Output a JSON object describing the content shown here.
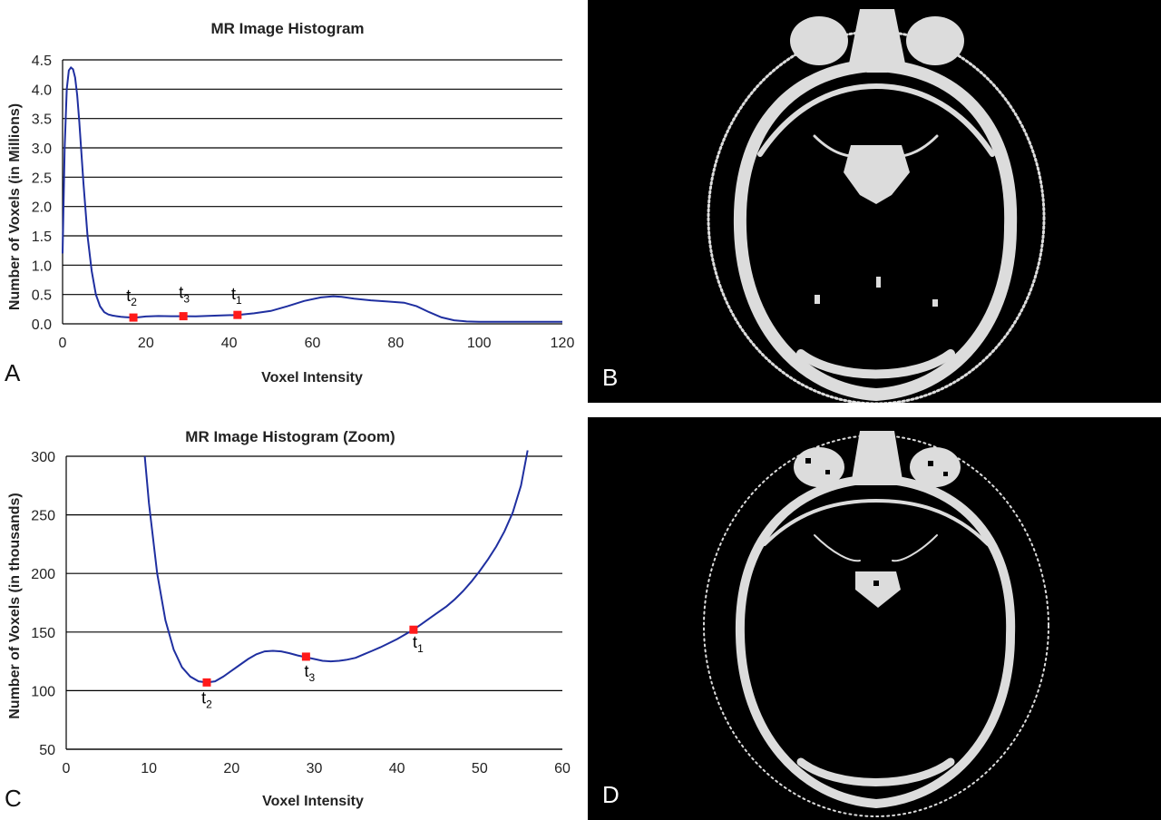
{
  "panels": {
    "a": "A",
    "b": "B",
    "c": "C",
    "d": "D"
  },
  "colors": {
    "curve": "#1f2fa0",
    "marker": "#ff1a1a",
    "scan": "#dcdcdc"
  },
  "chart_data": [
    {
      "panel": "A",
      "type": "line",
      "title": "MR Image Histogram",
      "xlabel": "Voxel Intensity",
      "ylabel": "Number of Voxels (in Millions)",
      "xlim": [
        0,
        120
      ],
      "ylim": [
        0,
        4.5
      ],
      "xticks": [
        0,
        20,
        40,
        60,
        80,
        100,
        120
      ],
      "yticks": [
        "0.0",
        "0.5",
        "1.0",
        "1.5",
        "2.0",
        "2.5",
        "3.0",
        "3.5",
        "4.0",
        "4.5"
      ],
      "grid": true,
      "series": [
        {
          "x": [
            0,
            0.5,
            1,
            1.5,
            2,
            2.5,
            3,
            3.5,
            4,
            5,
            6,
            7,
            8,
            9,
            10,
            11,
            12,
            13,
            14,
            15,
            16,
            17,
            18,
            20,
            23,
            26,
            29,
            32,
            35,
            38,
            42,
            46,
            50,
            54,
            58,
            62,
            65,
            67,
            70,
            74,
            78,
            82,
            85,
            88,
            91,
            94,
            97,
            100,
            105,
            110,
            115,
            120
          ],
          "y": [
            1.2,
            3.0,
            4.0,
            4.32,
            4.37,
            4.34,
            4.2,
            3.9,
            3.45,
            2.4,
            1.5,
            0.9,
            0.5,
            0.3,
            0.2,
            0.16,
            0.14,
            0.13,
            0.12,
            0.115,
            0.11,
            0.107,
            0.11,
            0.125,
            0.133,
            0.13,
            0.13,
            0.127,
            0.135,
            0.142,
            0.152,
            0.18,
            0.22,
            0.3,
            0.39,
            0.45,
            0.47,
            0.46,
            0.43,
            0.4,
            0.38,
            0.36,
            0.3,
            0.2,
            0.11,
            0.06,
            0.04,
            0.035,
            0.035,
            0.035,
            0.035,
            0.035
          ]
        }
      ],
      "points": [
        {
          "label": "t",
          "sub": "2",
          "x": 17,
          "y": 0.107
        },
        {
          "label": "t",
          "sub": "3",
          "x": 29,
          "y": 0.13
        },
        {
          "label": "t",
          "sub": "1",
          "x": 42,
          "y": 0.152
        }
      ]
    },
    {
      "panel": "C",
      "type": "line",
      "title": "MR Image Histogram (Zoom)",
      "xlabel": "Voxel Intensity",
      "ylabel": "Number of Voxels (in thousands)",
      "xlim": [
        0,
        60
      ],
      "ylim": [
        50,
        300
      ],
      "xticks": [
        0,
        10,
        20,
        30,
        40,
        50,
        60
      ],
      "yticks": [
        "50",
        "100",
        "150",
        "200",
        "250",
        "300"
      ],
      "grid": true,
      "series": [
        {
          "x": [
            9.5,
            10,
            11,
            12,
            13,
            14,
            15,
            16,
            17,
            18,
            19,
            20,
            21,
            22,
            23,
            24,
            25,
            26,
            27,
            28,
            29,
            30,
            31,
            32,
            33,
            34,
            35,
            36,
            37,
            38,
            39,
            40,
            41,
            42,
            43,
            44,
            45,
            46,
            47,
            48,
            49,
            50,
            51,
            52,
            53,
            54,
            55,
            55.8
          ],
          "y": [
            300,
            260,
            200,
            160,
            135,
            120,
            112,
            108,
            107,
            108,
            112,
            117,
            122,
            127,
            131,
            133.5,
            134,
            133.5,
            132,
            130,
            128.5,
            127,
            125.5,
            125,
            125.5,
            126.5,
            128,
            131,
            134,
            137,
            140.5,
            144,
            148,
            152,
            157,
            162,
            167,
            172,
            178,
            185,
            193,
            202,
            212,
            223,
            236,
            252,
            275,
            305
          ]
        }
      ],
      "points": [
        {
          "label": "t",
          "sub": "2",
          "x": 17,
          "y": 107
        },
        {
          "label": "t",
          "sub": "3",
          "x": 29,
          "y": 129
        },
        {
          "label": "t",
          "sub": "1",
          "x": 42,
          "y": 152
        }
      ]
    }
  ]
}
